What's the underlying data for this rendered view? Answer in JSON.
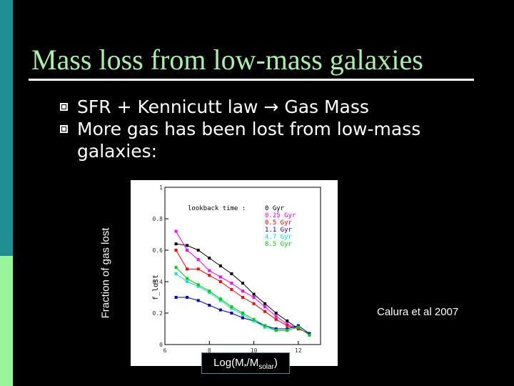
{
  "slide": {
    "title": "Mass loss from low-mass galaxies",
    "bullets": [
      "SFR + Kennicutt law → Gas Mass",
      "More gas has been lost from low-mass galaxies:"
    ],
    "credit": "Calura et al 2007",
    "y_axis_label": "Fraction of gas lost",
    "x_axis_label_main": "Log(M",
    "x_axis_label_star": "*",
    "x_axis_label_mid": "/M",
    "x_axis_label_sub": "solar",
    "x_axis_label_end": ")"
  },
  "colors": {
    "title": "#a8f0a8",
    "sidebar_top": "#1f8f93",
    "sidebar_bottom": "#99f599"
  },
  "chart_data": {
    "type": "line",
    "xlim": [
      6,
      13
    ],
    "ylim": [
      0,
      1
    ],
    "x_ticks": [
      6,
      8,
      10,
      12
    ],
    "y_ticks": [
      0,
      0.2,
      0.4,
      0.6,
      0.8,
      1
    ],
    "inner_ylabel": "f_lost",
    "legend_header": "lookback time :",
    "legend_position": "top-right",
    "x": [
      6.5,
      7.0,
      7.5,
      8.0,
      8.5,
      9.0,
      9.5,
      10.0,
      10.5,
      11.0,
      11.5,
      12.0,
      12.5
    ],
    "series": [
      {
        "name": "0 Gyr",
        "color": "#000000",
        "values": [
          0.64,
          0.63,
          0.6,
          0.55,
          0.5,
          0.45,
          0.39,
          0.32,
          0.26,
          0.2,
          0.15,
          0.1,
          0.07
        ]
      },
      {
        "name": "0.25 Gyr",
        "color": "#ff00ff",
        "values": [
          0.72,
          0.6,
          0.54,
          0.47,
          0.43,
          0.39,
          0.34,
          0.3,
          0.24,
          0.18,
          0.13,
          0.1,
          0.07
        ]
      },
      {
        "name": "0.5 Gyr",
        "color": "#ff0000",
        "values": [
          0.6,
          0.48,
          0.48,
          0.44,
          0.4,
          0.35,
          0.3,
          0.26,
          0.21,
          0.16,
          0.12,
          0.1,
          0.07
        ]
      },
      {
        "name": "1.1 Gyr",
        "color": "#0000cc",
        "values": [
          0.3,
          0.3,
          0.28,
          0.25,
          0.22,
          0.2,
          0.17,
          0.15,
          0.12,
          0.1,
          0.1,
          0.12,
          0.07
        ]
      },
      {
        "name": "4.7 Gyr",
        "color": "#00e5e5",
        "values": [
          0.45,
          0.4,
          0.37,
          0.33,
          0.28,
          0.23,
          0.19,
          0.15,
          0.11,
          0.09,
          0.09,
          0.11,
          0.06
        ]
      },
      {
        "name": "8.5 Gyr",
        "color": "#00cc00",
        "values": [
          0.49,
          0.42,
          0.38,
          0.34,
          0.29,
          0.24,
          0.2,
          0.16,
          0.12,
          0.09,
          0.09,
          0.11,
          0.06
        ]
      }
    ]
  }
}
